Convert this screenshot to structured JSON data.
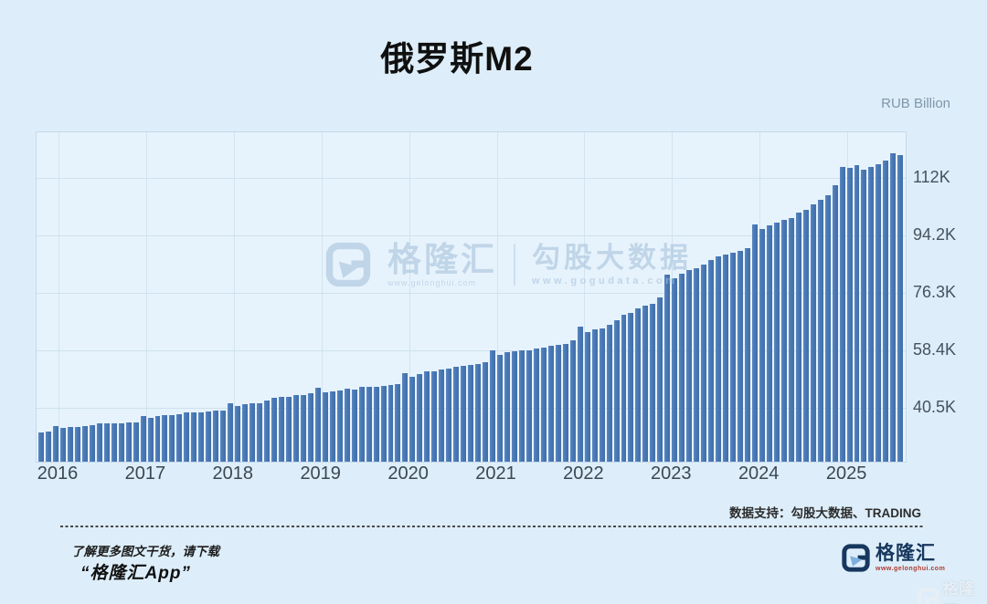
{
  "title": "俄罗斯M2",
  "chart_data": {
    "type": "bar",
    "title": "俄罗斯M2",
    "unit_label": "RUB Billion",
    "x_start": "2015-11",
    "x_freq": "monthly",
    "values": [
      33300,
      33600,
      35180,
      34620,
      35020,
      34940,
      35200,
      35660,
      35980,
      36050,
      36150,
      36170,
      36260,
      36430,
      38420,
      37770,
      38480,
      38560,
      38660,
      38890,
      39620,
      39570,
      39420,
      39740,
      40110,
      40070,
      42440,
      41600,
      42050,
      42380,
      42300,
      43120,
      43960,
      44370,
      44260,
      44890,
      44850,
      45390,
      47110,
      45780,
      46140,
      46440,
      46860,
      46740,
      47350,
      47350,
      47420,
      47750,
      48030,
      48360,
      51660,
      50620,
      51310,
      52330,
      52350,
      52740,
      53080,
      53630,
      54060,
      54330,
      54440,
      55110,
      58650,
      57280,
      58200,
      58380,
      58900,
      58760,
      59470,
      59580,
      60220,
      60520,
      60720,
      61780,
      66250,
      64530,
      65310,
      65580,
      66660,
      68010,
      69710,
      70470,
      71720,
      72540,
      73290,
      75100,
      82390,
      81290,
      82690,
      83640,
      84300,
      85550,
      86860,
      88020,
      88530,
      89000,
      89670,
      90570,
      98010,
      96540,
      97490,
      98330,
      99300,
      100000,
      101500,
      102500,
      104000,
      105500,
      107000,
      110000,
      115800,
      115400,
      116300,
      114900,
      115800,
      116600,
      117700,
      120100,
      119500
    ],
    "y_ticks": [
      {
        "value": 40500,
        "label": "40.5K"
      },
      {
        "value": 58400,
        "label": "58.4K"
      },
      {
        "value": 76300,
        "label": "76.3K"
      },
      {
        "value": 94200,
        "label": "94.2K"
      },
      {
        "value": 112000,
        "label": "112K"
      }
    ],
    "x_ticks": [
      "2016",
      "2017",
      "2018",
      "2019",
      "2020",
      "2021",
      "2022",
      "2023",
      "2024",
      "2025"
    ],
    "ylim": [
      24200,
      126500
    ],
    "grid": true,
    "legend": "none",
    "bar_color": "#4878b4"
  },
  "watermark": {
    "brand": "格隆汇",
    "brand_url": "www.gelonghui.com",
    "product": "勾股大数据",
    "product_url": "www.gogudata.com"
  },
  "footer": {
    "data_support": "数据支持：勾股大数据、TRADING",
    "promo_line1": "了解更多图文干货，请下载",
    "promo_line2": "“格隆汇App”",
    "brand": "格隆汇",
    "brand_url": "www.gelonghui.com"
  },
  "colors": {
    "page_bg": "#ddeefa",
    "plot_bg": "#e7f3fc",
    "bar": "#4878b4",
    "grid": "#cfe1ef",
    "brand_navy": "#17375e",
    "brand_url_red": "#b03a2e"
  }
}
